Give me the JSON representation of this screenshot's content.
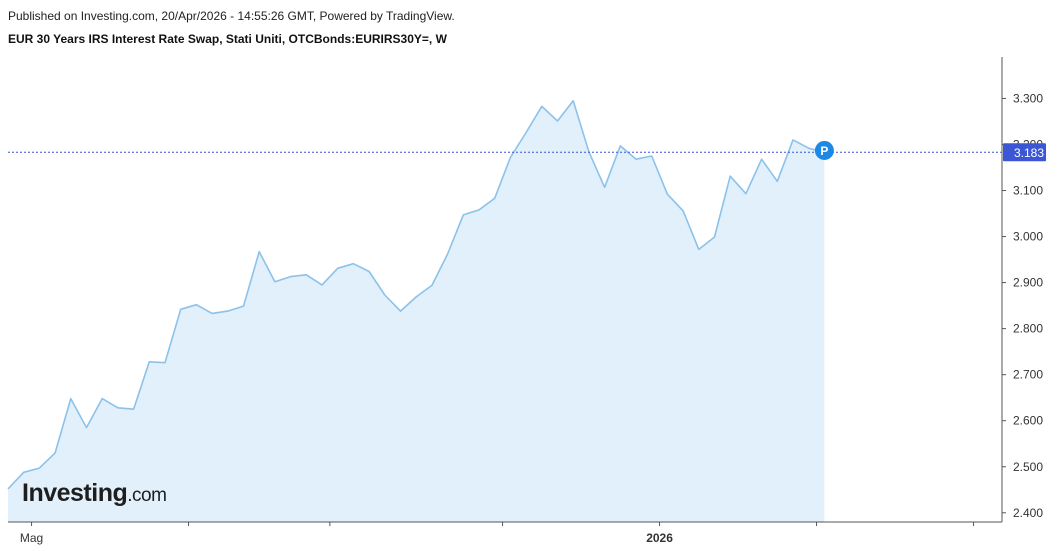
{
  "header": {
    "published": "Published on Investing.com, 20/Apr/2026 - 14:55:26 GMT, Powered by TradingView.",
    "symbol": "EUR 30 Years IRS Interest Rate Swap, Stati Uniti, OTCBonds:EURIRS30Y=, W"
  },
  "logo": {
    "main": "Investing",
    "tld": ".com"
  },
  "colors": {
    "line": "#8cc2ea",
    "fill": "#e1f0fa",
    "last_price": "#3b57d6",
    "marker": "#1e88e5",
    "axis": "#555555"
  },
  "chart_data": {
    "type": "area",
    "ylim": [
      2.38,
      3.39
    ],
    "yticks": [
      2.4,
      2.5,
      2.6,
      2.7,
      2.8,
      2.9,
      3.0,
      3.1,
      3.2,
      3.3
    ],
    "ytick_labels": [
      "2.400",
      "2.500",
      "2.600",
      "2.700",
      "2.800",
      "2.900",
      "3.000",
      "3.100",
      "3.200",
      "3.300"
    ],
    "x_labels": [
      {
        "label": "Mag",
        "index": 1.5,
        "major": false
      },
      {
        "label": "",
        "index": 11.5,
        "major": false
      },
      {
        "label": "",
        "index": 20.5,
        "major": false
      },
      {
        "label": "",
        "index": 31.5,
        "major": false
      },
      {
        "label": "2026",
        "index": 41.5,
        "major": true
      },
      {
        "label": "",
        "index": 51.5,
        "major": false
      },
      {
        "label": "",
        "index": 61.5,
        "major": false
      },
      {
        "label": "",
        "index": 68.5,
        "major": false
      }
    ],
    "last_value": 3.183,
    "last_label": "3.183",
    "marker": {
      "label": "P",
      "index": 52,
      "value": 3.187
    },
    "values": [
      2.452,
      2.488,
      2.497,
      2.53,
      2.648,
      2.585,
      2.648,
      2.628,
      2.625,
      2.728,
      2.726,
      2.842,
      2.852,
      2.833,
      2.838,
      2.849,
      2.967,
      2.902,
      2.913,
      2.917,
      2.895,
      2.931,
      2.941,
      2.924,
      2.873,
      2.838,
      2.869,
      2.894,
      2.962,
      3.047,
      3.058,
      3.083,
      3.172,
      3.226,
      3.283,
      3.251,
      3.295,
      3.184,
      3.107,
      3.197,
      3.168,
      3.175,
      3.092,
      3.056,
      2.972,
      2.999,
      3.131,
      3.093,
      3.168,
      3.12,
      3.21,
      3.192,
      3.183
    ]
  }
}
